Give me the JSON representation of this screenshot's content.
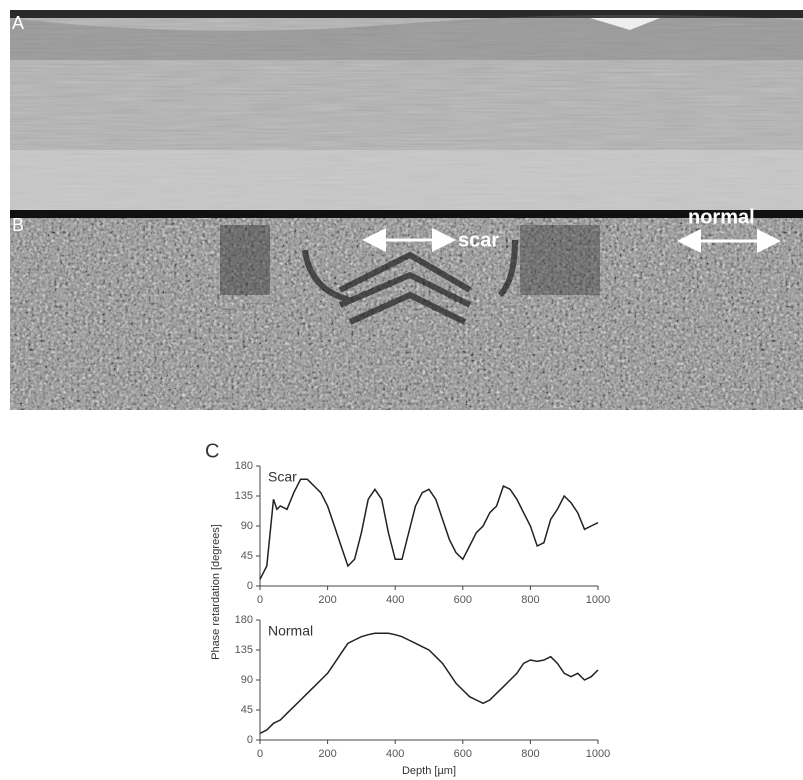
{
  "panels": {
    "a": "A",
    "b": "B",
    "c": "C"
  },
  "annotations": {
    "scar": "scar",
    "normal": "normal"
  },
  "chart_data": [
    {
      "type": "line",
      "title": "Scar",
      "ylabel": "Phase retardation [degrees]",
      "x": [
        0,
        20,
        40,
        50,
        60,
        80,
        100,
        120,
        140,
        160,
        180,
        200,
        220,
        240,
        260,
        280,
        300,
        320,
        340,
        360,
        380,
        400,
        420,
        440,
        460,
        480,
        500,
        520,
        540,
        560,
        580,
        600,
        620,
        640,
        660,
        680,
        700,
        720,
        740,
        760,
        780,
        800,
        820,
        840,
        860,
        880,
        900,
        920,
        940,
        960,
        980,
        1000
      ],
      "values": [
        10,
        30,
        130,
        115,
        120,
        115,
        140,
        160,
        160,
        150,
        140,
        120,
        90,
        60,
        30,
        40,
        80,
        130,
        145,
        130,
        80,
        40,
        40,
        80,
        120,
        140,
        145,
        130,
        100,
        70,
        50,
        40,
        60,
        80,
        90,
        110,
        120,
        150,
        145,
        130,
        110,
        90,
        60,
        65,
        100,
        115,
        135,
        125,
        110,
        85,
        90,
        95
      ],
      "color": "#222",
      "xlim": [
        0,
        1000
      ],
      "ylim": [
        0,
        180
      ],
      "xticks": [
        0,
        200,
        400,
        600,
        800,
        1000
      ],
      "yticks": [
        0,
        45,
        90,
        135,
        180
      ]
    },
    {
      "type": "line",
      "title": "Normal",
      "xlabel": "Depth [µm]",
      "x": [
        0,
        20,
        40,
        60,
        80,
        100,
        120,
        140,
        160,
        180,
        200,
        220,
        240,
        260,
        280,
        300,
        320,
        340,
        360,
        380,
        400,
        420,
        440,
        460,
        480,
        500,
        520,
        540,
        560,
        580,
        600,
        620,
        640,
        660,
        680,
        700,
        720,
        740,
        760,
        780,
        800,
        820,
        840,
        860,
        880,
        900,
        920,
        940,
        960,
        980,
        1000
      ],
      "values": [
        10,
        15,
        25,
        30,
        40,
        50,
        60,
        70,
        80,
        90,
        100,
        115,
        130,
        145,
        150,
        155,
        158,
        160,
        160,
        160,
        158,
        155,
        150,
        145,
        140,
        135,
        125,
        115,
        100,
        85,
        75,
        65,
        60,
        55,
        60,
        70,
        80,
        90,
        100,
        115,
        120,
        118,
        120,
        125,
        115,
        100,
        95,
        100,
        90,
        95,
        105
      ],
      "color": "#222",
      "xlim": [
        0,
        1000
      ],
      "ylim": [
        0,
        180
      ],
      "xticks": [
        0,
        200,
        400,
        600,
        800,
        1000
      ],
      "yticks": [
        0,
        45,
        90,
        135,
        180
      ]
    }
  ]
}
